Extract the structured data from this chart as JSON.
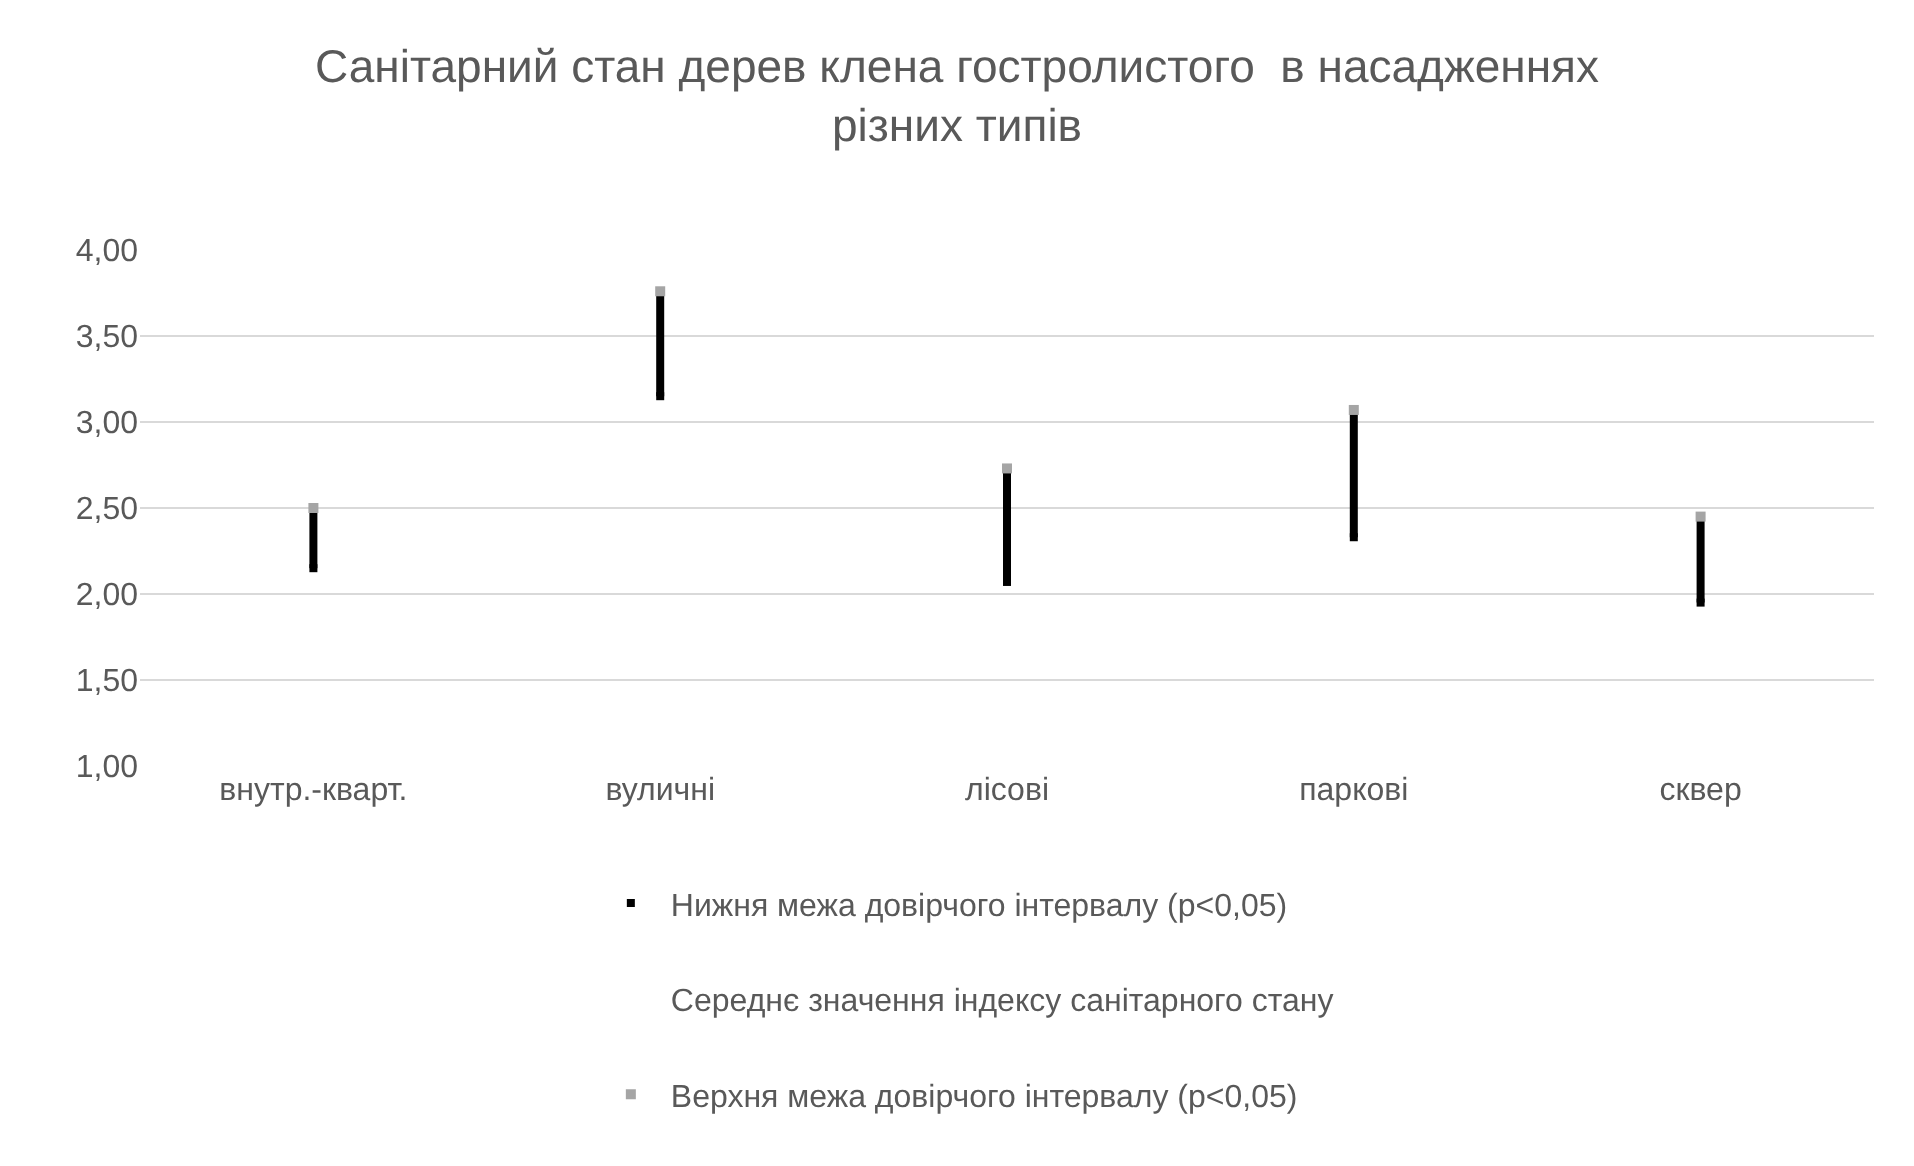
{
  "chart_data": {
    "type": "scatter",
    "title": "Санітарний стан дерев клена гостролистого  в насадженнях\nрізних типів",
    "categories": [
      "внутр.-кварт.",
      "вуличні",
      "лісові",
      "паркові",
      "сквер"
    ],
    "series": [
      {
        "name": "Нижня межа довірчого інтервалу (p<0,05)",
        "color": "#000000",
        "marker": "square",
        "values": [
          2.15,
          3.15,
          2.07,
          2.33,
          1.95
        ]
      },
      {
        "name": "Середнє значення індексу санітарного стану",
        "marker": "none",
        "values": [
          null,
          null,
          null,
          null,
          null
        ]
      },
      {
        "name": "Верхня межа довірчого інтервалу (p<0,05)",
        "color": "#a5a5a5",
        "marker": "square",
        "values": [
          2.5,
          3.76,
          2.73,
          3.07,
          2.45
        ]
      }
    ],
    "ylim": [
      1,
      4
    ],
    "yticks": [
      {
        "value": 1,
        "label": "1,00"
      },
      {
        "value": 1.5,
        "label": "1,50"
      },
      {
        "value": 2,
        "label": "2,00"
      },
      {
        "value": 2.5,
        "label": "2,50"
      },
      {
        "value": 3,
        "label": "3,00"
      },
      {
        "value": 3.5,
        "label": "3,50"
      },
      {
        "value": 4,
        "label": "4,00"
      }
    ],
    "grid": "y",
    "legend": "bottom"
  }
}
